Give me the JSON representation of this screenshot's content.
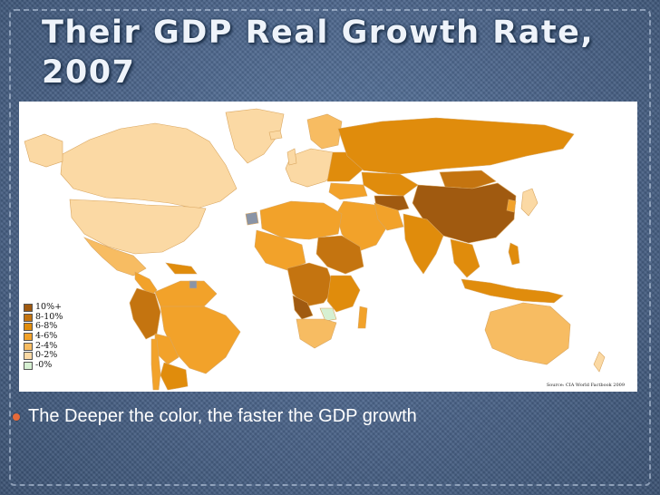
{
  "slide": {
    "title": "Their GDP Real Growth Rate, 2007",
    "bullet": "The Deeper the color, the faster the GDP growth"
  },
  "map": {
    "source": "Source: CIA World Factbook 2009",
    "legend": [
      {
        "label": "10%+",
        "color": "#a05a10"
      },
      {
        "label": "8-10%",
        "color": "#c47410"
      },
      {
        "label": "6-8%",
        "color": "#e08c0c"
      },
      {
        "label": "4-6%",
        "color": "#f2a22a"
      },
      {
        "label": "2-4%",
        "color": "#f7bc62"
      },
      {
        "label": "0-2%",
        "color": "#fbd9a4"
      },
      {
        "label": "-0%",
        "color": "#d6f0d2"
      }
    ],
    "no_data_color": "#8a94a6",
    "ocean_color": "#ffffff"
  },
  "theme": {
    "bullet_color": "#e56a3a",
    "background": "#4a6388"
  }
}
